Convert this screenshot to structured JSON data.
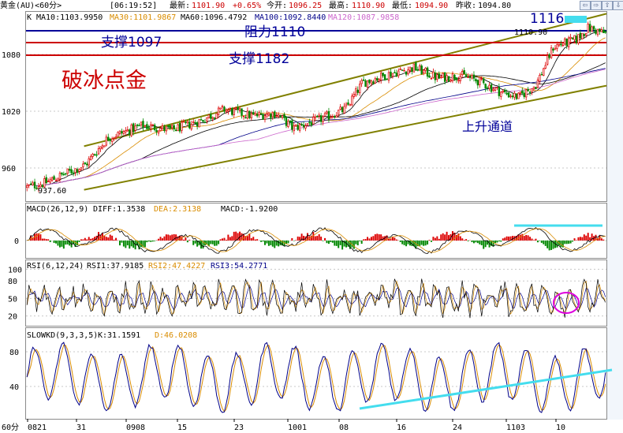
{
  "header": {
    "symbol": "黄金(AU)<60分>",
    "time": "[06:19:52]",
    "latest_label": "最新:",
    "latest_value": "1101.90",
    "change": "+0.65%",
    "open_label": "今开:",
    "open_value": "1096.25",
    "high_label": "最高:",
    "high_value": "1110.90",
    "low_label": "最低:",
    "low_value": "1094.90",
    "prev_label": "昨收:",
    "prev_value": "1094.80"
  },
  "nav_buttons": [
    "⇦",
    "⇨",
    "⇧",
    "⇩"
  ],
  "ma_line": {
    "k": "K",
    "ma10": "MA10:1103.9950",
    "ma30": "MA30:1101.9867",
    "ma60": "MA60:1096.4792",
    "ma100": "MA100:1092.8440",
    "ma120": "MA120:1087.9858"
  },
  "annotations": {
    "breakout": "破冰点金",
    "support1": "支撑1097",
    "resistance": "阻力1110",
    "support2": "支撑1182",
    "level_1116": "1116",
    "channel": "上升通道",
    "high_label": "1110.90",
    "low_label": "937.60"
  },
  "macd_panel": {
    "label": "MACD(26,12,9)",
    "diff": "DIFF:1.3538",
    "dea": "DEA:2.3138",
    "macd": "MACD:-1.9200"
  },
  "rsi_panel": {
    "label": "RSI(6,12,24)",
    "rsi1": "RSI1:37.9185",
    "rsi2": "RSI2:47.4227",
    "rsi3": "RSI3:54.2771"
  },
  "kd_panel": {
    "label": "SLOWKD(9,3,3,5)",
    "k": "K:31.1591",
    "d": "D:46.0208"
  },
  "x_axis": {
    "period": "60分",
    "ticks": [
      "0821",
      "31",
      "0908",
      "15",
      "23",
      "1001",
      "08",
      "16",
      "24",
      "1103",
      "10"
    ]
  },
  "chart_data": [
    {
      "type": "candlestick",
      "title": "黄金(AU)<60分>",
      "y_ticks": [
        960,
        1020,
        1080
      ],
      "ylim": [
        925,
        1125
      ],
      "x_ticks": [
        "0821",
        "31",
        "0908",
        "15",
        "23",
        "1001",
        "08",
        "16",
        "24",
        "1103",
        "10"
      ],
      "waypoints": [
        {
          "x": 0,
          "price": 940
        },
        {
          "x": 0.03,
          "price": 944
        },
        {
          "x": 0.07,
          "price": 955
        },
        {
          "x": 0.1,
          "price": 963
        },
        {
          "x": 0.14,
          "price": 992
        },
        {
          "x": 0.2,
          "price": 1005
        },
        {
          "x": 0.25,
          "price": 1000
        },
        {
          "x": 0.3,
          "price": 1010
        },
        {
          "x": 0.34,
          "price": 1022
        },
        {
          "x": 0.39,
          "price": 1015
        },
        {
          "x": 0.43,
          "price": 1018
        },
        {
          "x": 0.46,
          "price": 1002
        },
        {
          "x": 0.5,
          "price": 1010
        },
        {
          "x": 0.55,
          "price": 1022
        },
        {
          "x": 0.58,
          "price": 1050
        },
        {
          "x": 0.63,
          "price": 1060
        },
        {
          "x": 0.67,
          "price": 1066
        },
        {
          "x": 0.71,
          "price": 1055
        },
        {
          "x": 0.75,
          "price": 1058
        },
        {
          "x": 0.78,
          "price": 1052
        },
        {
          "x": 0.82,
          "price": 1040
        },
        {
          "x": 0.85,
          "price": 1035
        },
        {
          "x": 0.88,
          "price": 1048
        },
        {
          "x": 0.91,
          "price": 1088
        },
        {
          "x": 0.95,
          "price": 1096
        },
        {
          "x": 0.97,
          "price": 1108
        },
        {
          "x": 1.0,
          "price": 1102
        }
      ],
      "resistance": 1110,
      "support_levels": [
        1097,
        1182
      ],
      "channel_upper": [
        {
          "x": 0.1,
          "price": 983
        },
        {
          "x": 1.0,
          "price": 1123
        }
      ],
      "channel_lower": [
        {
          "x": 0.1,
          "price": 937
        },
        {
          "x": 1.0,
          "price": 1047
        }
      ],
      "high": 1110.9,
      "low": 937.6
    },
    {
      "type": "bar",
      "title": "MACD(26,12,9)",
      "y_ticks": [
        0
      ],
      "series": [
        {
          "name": "DIFF",
          "last": 1.3538
        },
        {
          "name": "DEA",
          "last": 2.3138
        },
        {
          "name": "MACD",
          "last": -1.92
        }
      ]
    },
    {
      "type": "line",
      "title": "RSI(6,12,24)",
      "y_ticks": [
        20,
        50,
        80,
        100
      ],
      "series": [
        {
          "name": "RSI1",
          "last": 37.9185
        },
        {
          "name": "RSI2",
          "last": 47.4227
        },
        {
          "name": "RSI3",
          "last": 54.2771
        }
      ]
    },
    {
      "type": "line",
      "title": "SLOWKD(9,3,3,5)",
      "y_ticks": [
        40,
        80
      ],
      "series": [
        {
          "name": "K",
          "last": 31.1591
        },
        {
          "name": "D",
          "last": 46.0208
        }
      ]
    }
  ]
}
